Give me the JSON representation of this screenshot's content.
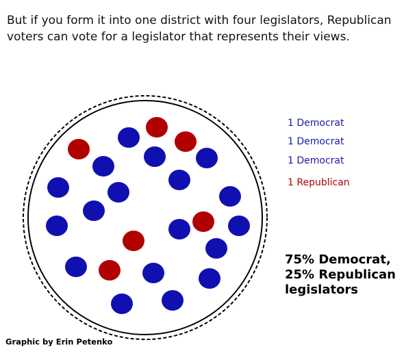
{
  "header": {
    "lines": [
      "But if you form it into one district with four legislators, Republican",
      "voters can vote for a legislator that represents their views."
    ]
  },
  "legend": [
    "1 Democrat",
    "1 Democrat",
    "1 Democrat",
    "1 Republican"
  ],
  "summary": [
    "75% Democrat,",
    "25% Republican",
    "legislators"
  ],
  "credit": "Graphic by Erin Petenko"
}
